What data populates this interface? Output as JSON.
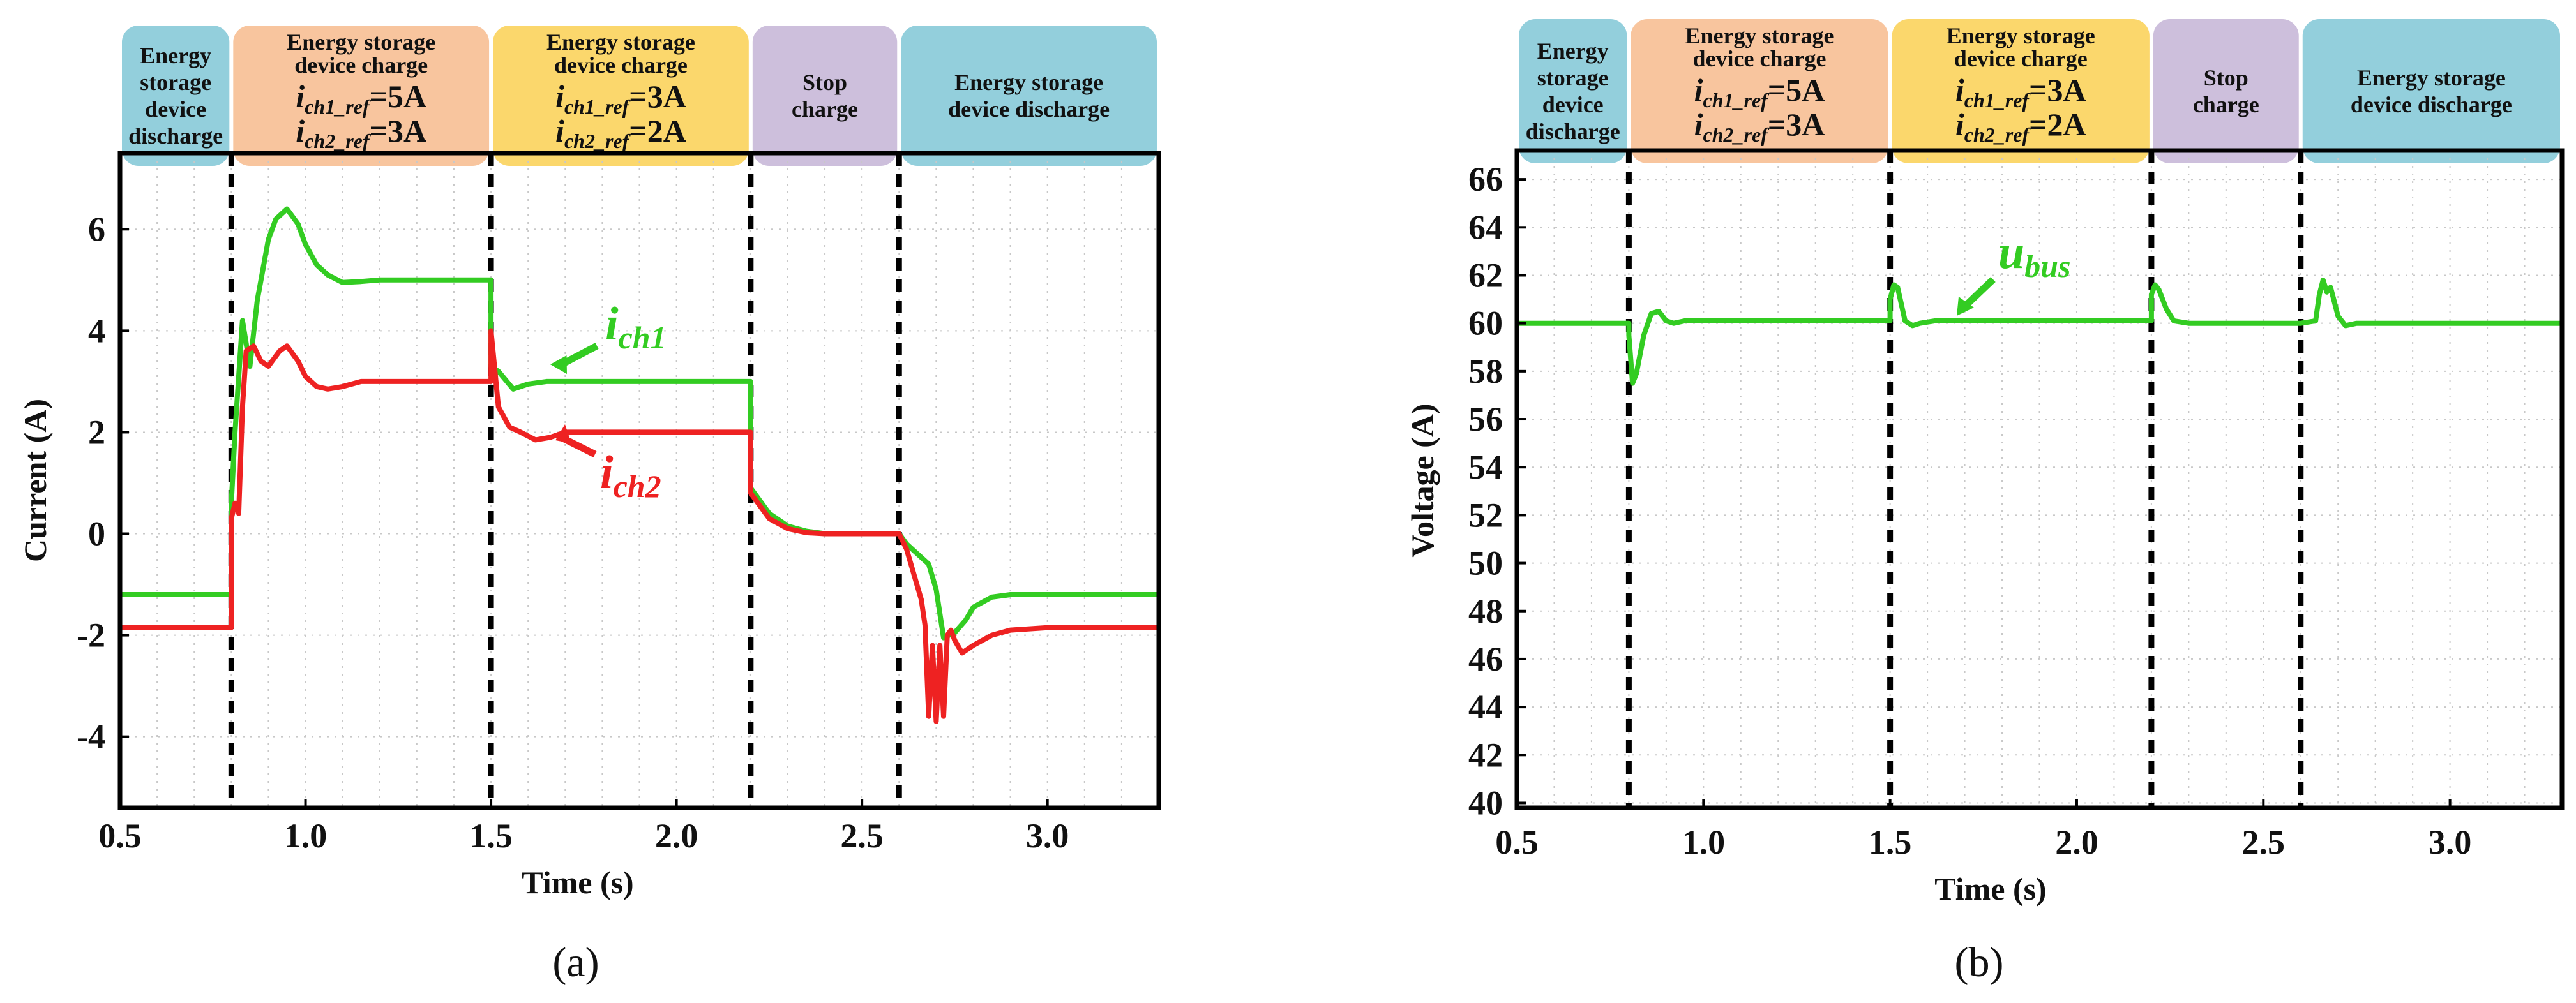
{
  "colors": {
    "green": "#33cc22",
    "red": "#ee2222",
    "phase_discharge": "#93cfdc",
    "phase_charge1": "#f8c59e",
    "phase_charge2": "#fbd76c",
    "phase_stop": "#cdbfdc"
  },
  "chart_data": [
    {
      "type": "line",
      "caption": "(a)",
      "title": "",
      "xlabel": "Time (s)",
      "ylabel": "Current (A)",
      "xlim": [
        0.5,
        3.3
      ],
      "ylim": [
        -5.4,
        7.5
      ],
      "xticks": [
        0.5,
        1.0,
        1.5,
        2.0,
        2.5,
        3.0
      ],
      "xtick_labels": [
        "0.5",
        "1.0",
        "1.5",
        "2.0",
        "2.5",
        "3.0"
      ],
      "yticks": [
        -4,
        -2,
        0,
        2,
        4,
        6
      ],
      "ytick_labels": [
        "-4",
        "-2",
        "0",
        "2",
        "4",
        "6"
      ],
      "grid": true,
      "event_lines": [
        0.8,
        1.5,
        2.2,
        2.6
      ],
      "phases": [
        {
          "lines": [
            "Energy",
            "storage",
            "device",
            "discharge"
          ],
          "color": "phase_discharge",
          "x0": 0.5,
          "x1": 0.8
        },
        {
          "lines": [
            "Energy storage",
            "device charge"
          ],
          "ref1": "=5A",
          "ref2": "=3A",
          "color": "phase_charge1",
          "x0": 0.8,
          "x1": 1.5
        },
        {
          "lines": [
            "Energy storage",
            "device charge"
          ],
          "ref1": "=3A",
          "ref2": "=2A",
          "color": "phase_charge2",
          "x0": 1.5,
          "x1": 2.2
        },
        {
          "lines": [
            "Stop",
            "charge"
          ],
          "color": "phase_stop",
          "x0": 2.2,
          "x1": 2.6
        },
        {
          "lines": [
            "Energy storage",
            "device discharge"
          ],
          "color": "phase_discharge",
          "x0": 2.6,
          "x1": 3.3
        }
      ],
      "ref_label_1": "i",
      "ref_sub_1": "ch1_ref",
      "ref_label_2": "i",
      "ref_sub_2": "ch2_ref",
      "series": [
        {
          "name": "i_ch1",
          "label": "i",
          "label_sub": "ch1",
          "color": "green",
          "x": [
            0.5,
            0.8,
            0.8,
            0.81,
            0.83,
            0.85,
            0.87,
            0.9,
            0.92,
            0.95,
            0.98,
            1.0,
            1.03,
            1.06,
            1.1,
            1.15,
            1.2,
            1.3,
            1.4,
            1.5,
            1.5,
            1.52,
            1.56,
            1.6,
            1.65,
            1.7,
            1.8,
            1.9,
            2.0,
            2.1,
            2.2,
            2.2,
            2.25,
            2.3,
            2.35,
            2.4,
            2.5,
            2.6,
            2.62,
            2.65,
            2.68,
            2.7,
            2.72,
            2.75,
            2.78,
            2.8,
            2.85,
            2.9,
            3.0,
            3.1,
            3.3
          ],
          "y": [
            -1.2,
            -1.2,
            0.6,
            2.0,
            4.2,
            3.3,
            4.6,
            5.8,
            6.2,
            6.4,
            6.1,
            5.7,
            5.3,
            5.1,
            4.95,
            4.97,
            5.0,
            5.0,
            5.0,
            5.0,
            3.3,
            3.2,
            2.85,
            2.95,
            3.0,
            3.0,
            3.0,
            3.0,
            3.0,
            3.0,
            3.0,
            0.9,
            0.4,
            0.15,
            0.05,
            0.0,
            0.0,
            0.0,
            -0.2,
            -0.4,
            -0.6,
            -1.1,
            -2.05,
            -1.95,
            -1.7,
            -1.45,
            -1.25,
            -1.2,
            -1.2,
            -1.2,
            -1.2
          ]
        },
        {
          "name": "i_ch2",
          "label": "i",
          "label_sub": "ch2",
          "color": "red",
          "x": [
            0.5,
            0.8,
            0.8,
            0.81,
            0.82,
            0.83,
            0.84,
            0.86,
            0.88,
            0.9,
            0.93,
            0.95,
            0.98,
            1.0,
            1.03,
            1.06,
            1.1,
            1.15,
            1.2,
            1.3,
            1.4,
            1.5,
            1.5,
            1.52,
            1.55,
            1.58,
            1.62,
            1.66,
            1.7,
            1.8,
            1.9,
            2.0,
            2.1,
            2.2,
            2.2,
            2.25,
            2.3,
            2.35,
            2.4,
            2.5,
            2.6,
            2.62,
            2.64,
            2.66,
            2.67,
            2.68,
            2.69,
            2.7,
            2.71,
            2.72,
            2.73,
            2.74,
            2.75,
            2.77,
            2.8,
            2.85,
            2.9,
            3.0,
            3.1,
            3.3
          ],
          "y": [
            -1.85,
            -1.85,
            0.3,
            0.6,
            0.4,
            2.5,
            3.6,
            3.7,
            3.4,
            3.3,
            3.6,
            3.7,
            3.4,
            3.1,
            2.9,
            2.85,
            2.9,
            3.0,
            3.0,
            3.0,
            3.0,
            3.0,
            4.0,
            2.5,
            2.1,
            2.0,
            1.85,
            1.9,
            2.0,
            2.0,
            2.0,
            2.0,
            2.0,
            2.0,
            0.8,
            0.3,
            0.1,
            0.02,
            0.0,
            0.0,
            0.0,
            -0.3,
            -0.8,
            -1.3,
            -1.8,
            -3.6,
            -2.2,
            -3.7,
            -2.2,
            -3.6,
            -2.0,
            -1.9,
            -2.1,
            -2.35,
            -2.2,
            -2.0,
            -1.9,
            -1.85,
            -1.85,
            -1.85
          ]
        }
      ]
    },
    {
      "type": "line",
      "caption": "(b)",
      "title": "",
      "xlabel": "Time (s)",
      "ylabel": "Voltage (A)",
      "xlim": [
        0.5,
        3.3
      ],
      "ylim": [
        39.8,
        67.2
      ],
      "xticks": [
        0.5,
        1.0,
        1.5,
        2.0,
        2.5,
        3.0
      ],
      "xtick_labels": [
        "0.5",
        "1.0",
        "1.5",
        "2.0",
        "2.5",
        "3.0"
      ],
      "yticks": [
        40,
        42,
        44,
        46,
        48,
        50,
        52,
        54,
        56,
        58,
        60,
        62,
        64,
        66
      ],
      "ytick_labels": [
        "40",
        "42",
        "44",
        "46",
        "48",
        "50",
        "52",
        "54",
        "56",
        "58",
        "60",
        "62",
        "64",
        "66"
      ],
      "grid": true,
      "event_lines": [
        0.8,
        1.5,
        2.2,
        2.6
      ],
      "phases": [
        {
          "lines": [
            "Energy",
            "storage",
            "device",
            "discharge"
          ],
          "color": "phase_discharge",
          "x0": 0.5,
          "x1": 0.8
        },
        {
          "lines": [
            "Energy storage",
            "device charge"
          ],
          "ref1": "=5A",
          "ref2": "=3A",
          "color": "phase_charge1",
          "x0": 0.8,
          "x1": 1.5
        },
        {
          "lines": [
            "Energy storage",
            "device charge"
          ],
          "ref1": "=3A",
          "ref2": "=2A",
          "color": "phase_charge2",
          "x0": 1.5,
          "x1": 2.2
        },
        {
          "lines": [
            "Stop",
            "charge"
          ],
          "color": "phase_stop",
          "x0": 2.2,
          "x1": 2.6
        },
        {
          "lines": [
            "Energy storage",
            "device discharge"
          ],
          "color": "phase_discharge",
          "x0": 2.6,
          "x1": 3.3
        }
      ],
      "ref_label_1": "i",
      "ref_sub_1": "ch1_ref",
      "ref_label_2": "i",
      "ref_sub_2": "ch2_ref",
      "series": [
        {
          "name": "u_bus",
          "label": "u",
          "label_sub": "bus",
          "color": "green",
          "x": [
            0.5,
            0.8,
            0.8,
            0.81,
            0.82,
            0.84,
            0.86,
            0.88,
            0.9,
            0.92,
            0.95,
            1.0,
            1.2,
            1.5,
            1.5,
            1.51,
            1.52,
            1.53,
            1.54,
            1.56,
            1.58,
            1.62,
            1.7,
            2.0,
            2.2,
            2.2,
            2.21,
            2.22,
            2.24,
            2.26,
            2.3,
            2.4,
            2.6,
            2.64,
            2.65,
            2.66,
            2.67,
            2.68,
            2.69,
            2.7,
            2.72,
            2.75,
            2.8,
            3.0,
            3.3
          ],
          "y": [
            60.0,
            60.0,
            59.5,
            57.5,
            57.9,
            59.5,
            60.4,
            60.5,
            60.1,
            60.0,
            60.1,
            60.1,
            60.1,
            60.1,
            61.0,
            61.6,
            61.5,
            60.8,
            60.1,
            59.9,
            60.0,
            60.1,
            60.1,
            60.1,
            60.1,
            61.2,
            61.6,
            61.4,
            60.6,
            60.1,
            60.0,
            60.0,
            60.0,
            60.1,
            61.2,
            61.8,
            61.3,
            61.5,
            60.9,
            60.3,
            59.9,
            60.0,
            60.0,
            60.0,
            60.0
          ]
        }
      ]
    }
  ]
}
